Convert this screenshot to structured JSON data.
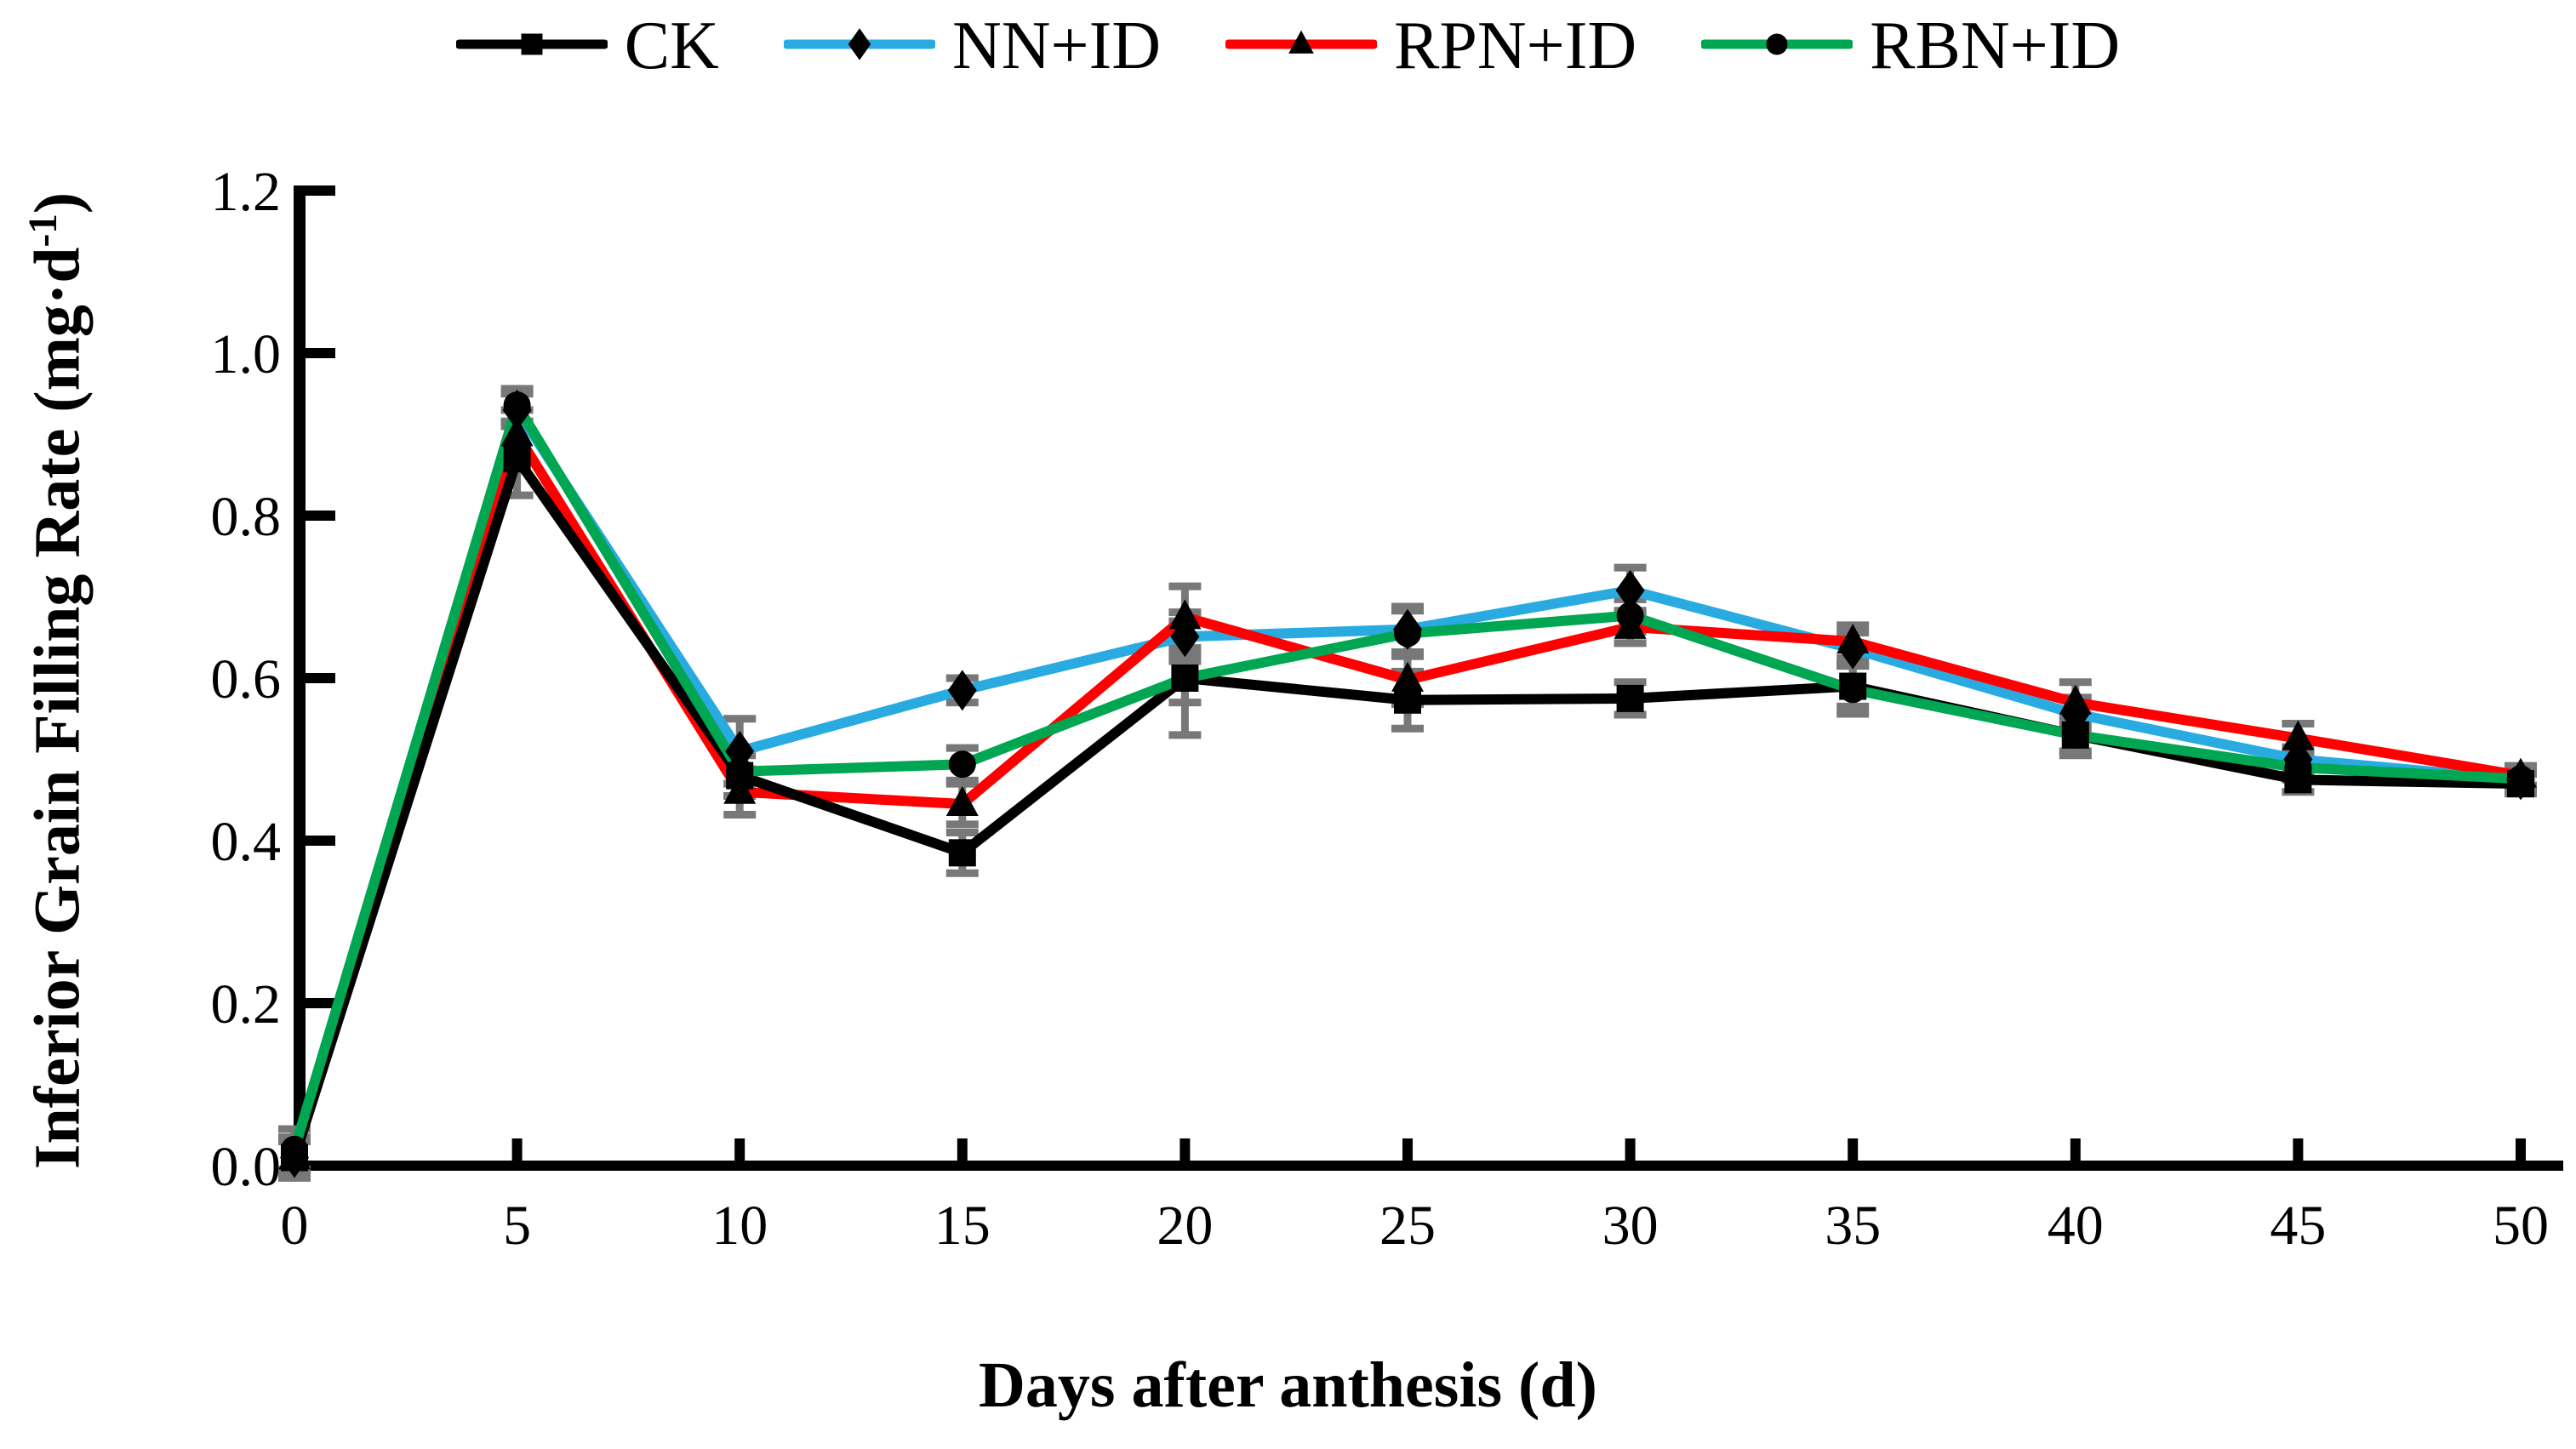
{
  "chart_data": {
    "type": "line",
    "title": "",
    "xlabel": "Days after anthesis (d)",
    "ylabel_main": "Inferior Grain Filling Rate (mg·d",
    "ylabel_sup": "-1",
    "ylabel_close": ")",
    "x": [
      0,
      5,
      10,
      15,
      20,
      25,
      30,
      35,
      40,
      45,
      50
    ],
    "xlim": [
      0,
      50
    ],
    "ylim": [
      0,
      1.2
    ],
    "yticks": [
      0.0,
      0.2,
      0.4,
      0.6,
      0.8,
      1.0,
      1.2
    ],
    "grid": false,
    "legend_position": "top-center",
    "error_bar_color": "#787878",
    "axis_color": "#000000",
    "marker_color": "#000000",
    "series": [
      {
        "name": "CK",
        "color": "#000000",
        "marker": "square",
        "values": [
          0.01,
          0.87,
          0.48,
          0.385,
          0.6,
          0.573,
          0.575,
          0.59,
          0.53,
          0.475,
          0.47
        ],
        "errors": [
          0.025,
          0.045,
          0.025,
          0.025,
          0.07,
          0.035,
          0.02,
          0.025,
          0.025,
          0.015,
          0.012
        ]
      },
      {
        "name": "NN+ID",
        "color": "#29ABE2",
        "marker": "diamond",
        "values": [
          0.01,
          0.93,
          0.51,
          0.585,
          0.651,
          0.66,
          0.708,
          0.636,
          0.556,
          0.5,
          0.475
        ],
        "errors": [
          0.02,
          0.02,
          0.04,
          0.015,
          0.03,
          0.028,
          0.028,
          0.02,
          0.02,
          0.015,
          0.012
        ]
      },
      {
        "name": "RPN+ID",
        "color": "#FF0000",
        "marker": "triangle",
        "values": [
          0.01,
          0.9,
          0.46,
          0.445,
          0.675,
          0.598,
          0.663,
          0.645,
          0.57,
          0.526,
          0.48
        ],
        "errors": [
          0.02,
          0.03,
          0.028,
          0.025,
          0.038,
          0.03,
          0.02,
          0.02,
          0.025,
          0.018,
          0.012
        ]
      },
      {
        "name": "RBN+ID",
        "color": "#00A651",
        "marker": "circle",
        "values": [
          0.02,
          0.936,
          0.485,
          0.494,
          0.6,
          0.655,
          0.677,
          0.586,
          0.53,
          0.49,
          0.476
        ],
        "errors": [
          0.025,
          0.02,
          0.03,
          0.02,
          0.03,
          0.028,
          0.02,
          0.03,
          0.02,
          0.015,
          0.012
        ]
      }
    ],
    "line_draw_order": [
      1,
      2,
      0,
      3
    ]
  }
}
